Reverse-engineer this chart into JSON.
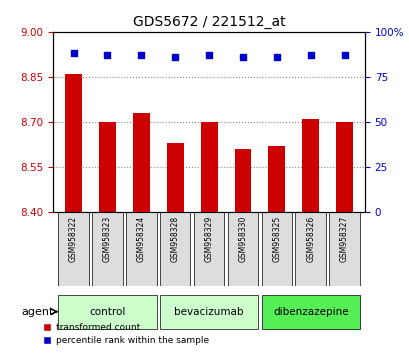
{
  "title": "GDS5672 / 221512_at",
  "samples": [
    "GSM958322",
    "GSM958323",
    "GSM958324",
    "GSM958328",
    "GSM958329",
    "GSM958330",
    "GSM958325",
    "GSM958326",
    "GSM958327"
  ],
  "bar_values": [
    8.86,
    8.7,
    8.73,
    8.63,
    8.7,
    8.61,
    8.62,
    8.71,
    8.7
  ],
  "percentile_values": [
    88,
    87,
    87,
    86,
    87,
    86,
    86,
    87,
    87
  ],
  "ylim_left": [
    8.4,
    9.0
  ],
  "ylim_right": [
    0,
    100
  ],
  "yticks_left": [
    8.4,
    8.55,
    8.7,
    8.85,
    9.0
  ],
  "yticks_right": [
    0,
    25,
    50,
    75,
    100
  ],
  "bar_color": "#CC0000",
  "dot_color": "#0000CC",
  "bar_width": 0.5,
  "groups": [
    {
      "label": "control",
      "indices": [
        0,
        1,
        2
      ],
      "color": "#CCFFCC"
    },
    {
      "label": "bevacizumab",
      "indices": [
        3,
        4,
        5
      ],
      "color": "#CCFFCC"
    },
    {
      "label": "dibenzazepine",
      "indices": [
        6,
        7,
        8
      ],
      "color": "#55EE55"
    }
  ],
  "agent_label": "agent",
  "legend_bar_label": "transformed count",
  "legend_dot_label": "percentile rank within the sample",
  "xlabel_color": "#CC0000",
  "ylabel_right_color": "#0000CC",
  "grid_color": "#888888"
}
